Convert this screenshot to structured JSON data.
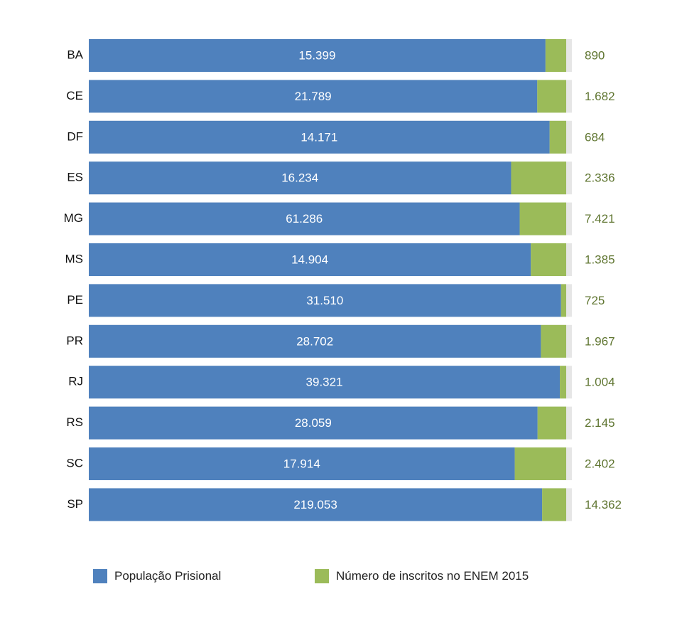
{
  "chart_data": {
    "type": "bar",
    "orientation": "horizontal",
    "stacked": "percent",
    "categories": [
      "BA",
      "CE",
      "DF",
      "ES",
      "MG",
      "MS",
      "PE",
      "PR",
      "RJ",
      "RS",
      "SC",
      "SP"
    ],
    "series": [
      {
        "name": "População Prisional",
        "color": "#4f81bd",
        "values": [
          15399,
          21789,
          14171,
          16234,
          61286,
          14904,
          31510,
          28702,
          39321,
          28059,
          17914,
          219053
        ],
        "labels": [
          "15.399",
          "21.789",
          "14.171",
          "16.234",
          "61.286",
          "14.904",
          "31.510",
          "28.702",
          "39.321",
          "28.059",
          "17.914",
          "219.053"
        ]
      },
      {
        "name": "Número de inscritos no ENEM 2015",
        "color": "#9bbb59",
        "label_color": "#5f7530",
        "values": [
          890,
          1682,
          684,
          2336,
          7421,
          1385,
          725,
          1967,
          1004,
          2145,
          2402,
          14362
        ],
        "labels": [
          "890",
          "1.682",
          "684",
          "2.336",
          "7.421",
          "1.385",
          "725",
          "1.967",
          "1.004",
          "2.145",
          "2.402",
          "14.362"
        ]
      }
    ],
    "legend_position": "bottom",
    "grid": false
  },
  "legend": {
    "items": [
      {
        "label": "População Prisional",
        "color": "#4f81bd"
      },
      {
        "label": "Número de inscritos no ENEM 2015",
        "color": "#9bbb59"
      }
    ]
  }
}
